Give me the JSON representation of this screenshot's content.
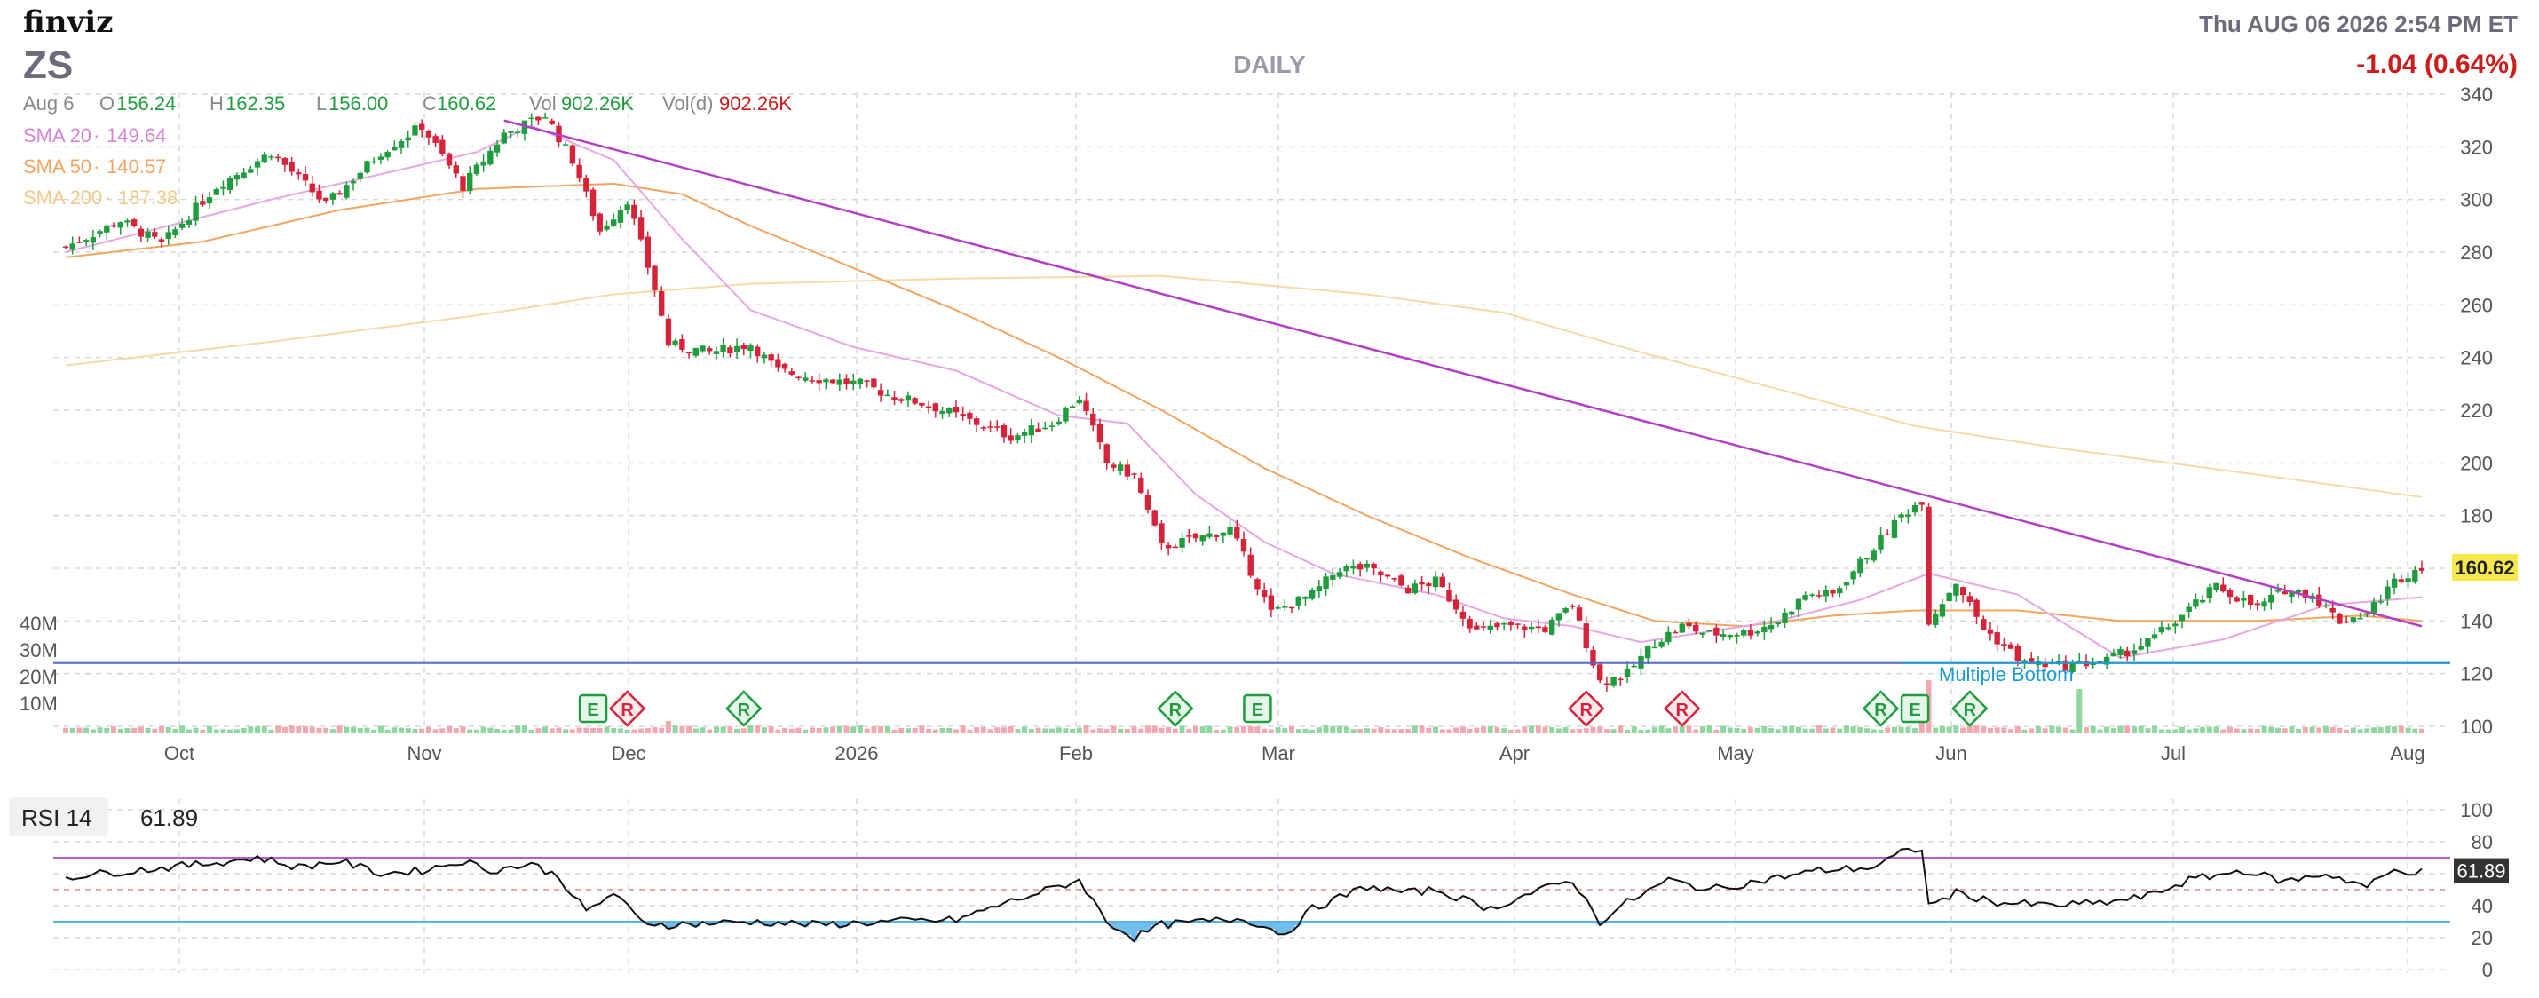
{
  "brand": {
    "name": "finviz"
  },
  "ticker": "ZS",
  "period_label": "DAILY",
  "timestamp": "Thu AUG 06 2026 2:54 PM ET",
  "change": "-1.04 (0.64%)",
  "ohlc": {
    "date": "Aug 6",
    "open_label": "O",
    "open": "156.24",
    "high_label": "H",
    "high": "162.35",
    "low_label": "L",
    "low": "156.00",
    "close_label": "C",
    "close": "160.62",
    "vol_label": "Vol",
    "vol": "902.26K",
    "vold_label": "Vol(d)",
    "vold": "902.26K"
  },
  "sma": [
    {
      "label": "SMA 20",
      "value": "149.64",
      "color": "#d884d4"
    },
    {
      "label": "SMA 50",
      "value": "140.57",
      "color": "#f4a460"
    },
    {
      "label": "SMA 200",
      "value": "187.38",
      "color": "#f5d9a8"
    }
  ],
  "colors": {
    "up": "#1f9d3e",
    "down": "#d6233a",
    "vol_up": "#8fd6a0",
    "vol_down": "#f2a8b0",
    "trendline": "#b23fc4",
    "support": "#1a9bd7",
    "price_tag_bg": "#f7e94b",
    "rsi_line": "#111111",
    "rsi_fill": "#5ab3e6",
    "rsi_upper": "#b75fd0",
    "rsi_lower": "#56b4e9",
    "grid": "#d9d9d9",
    "axis_text": "#555555",
    "change": "#cc1c1c"
  },
  "last_price_tag": "160.62",
  "pattern_label": "Multiple Bottom",
  "rsi": {
    "label": "RSI 14",
    "value": "61.89",
    "ylim": [
      0,
      100
    ],
    "ticks": [
      "0",
      "20",
      "40",
      "60",
      "80",
      "100"
    ],
    "upper": 70,
    "lower": 30
  },
  "chart_data": {
    "type": "candlestick",
    "ylim": [
      100,
      340
    ],
    "y_ticks": [
      "100",
      "120",
      "140",
      "160",
      "180",
      "200",
      "220",
      "240",
      "260",
      "280",
      "300",
      "320",
      "340"
    ],
    "x_ticks": [
      "Oct",
      "Nov",
      "Dec",
      "2026",
      "Feb",
      "Mar",
      "Apr",
      "May",
      "Jun",
      "Jul",
      "Aug"
    ],
    "volume_ticks": [
      "10M",
      "20M",
      "30M",
      "40M"
    ],
    "key_points": [
      {
        "i": 0,
        "c": 282
      },
      {
        "i": 8,
        "c": 292
      },
      {
        "i": 14,
        "c": 283
      },
      {
        "i": 22,
        "c": 305
      },
      {
        "i": 30,
        "c": 318
      },
      {
        "i": 38,
        "c": 298
      },
      {
        "i": 46,
        "c": 318
      },
      {
        "i": 52,
        "c": 328
      },
      {
        "i": 58,
        "c": 305
      },
      {
        "i": 64,
        "c": 325
      },
      {
        "i": 70,
        "c": 332
      },
      {
        "i": 74,
        "c": 315
      },
      {
        "i": 78,
        "c": 288
      },
      {
        "i": 82,
        "c": 300
      },
      {
        "i": 86,
        "c": 266
      },
      {
        "i": 88,
        "c": 245
      },
      {
        "i": 94,
        "c": 242
      },
      {
        "i": 100,
        "c": 245
      },
      {
        "i": 104,
        "c": 235
      },
      {
        "i": 110,
        "c": 232
      },
      {
        "i": 116,
        "c": 230
      },
      {
        "i": 120,
        "c": 226
      },
      {
        "i": 126,
        "c": 222
      },
      {
        "i": 132,
        "c": 216
      },
      {
        "i": 138,
        "c": 210
      },
      {
        "i": 144,
        "c": 215
      },
      {
        "i": 148,
        "c": 225
      },
      {
        "i": 152,
        "c": 200
      },
      {
        "i": 156,
        "c": 195
      },
      {
        "i": 160,
        "c": 168
      },
      {
        "i": 166,
        "c": 172
      },
      {
        "i": 170,
        "c": 175
      },
      {
        "i": 176,
        "c": 143
      },
      {
        "i": 182,
        "c": 150
      },
      {
        "i": 186,
        "c": 160
      },
      {
        "i": 190,
        "c": 160
      },
      {
        "i": 196,
        "c": 152
      },
      {
        "i": 200,
        "c": 155
      },
      {
        "i": 206,
        "c": 136
      },
      {
        "i": 210,
        "c": 138
      },
      {
        "i": 216,
        "c": 137
      },
      {
        "i": 220,
        "c": 146
      },
      {
        "i": 224,
        "c": 117
      },
      {
        "i": 228,
        "c": 120
      },
      {
        "i": 232,
        "c": 132
      },
      {
        "i": 236,
        "c": 138
      },
      {
        "i": 240,
        "c": 135
      },
      {
        "i": 246,
        "c": 136
      },
      {
        "i": 250,
        "c": 140
      },
      {
        "i": 254,
        "c": 150
      },
      {
        "i": 258,
        "c": 150
      },
      {
        "i": 264,
        "c": 168
      },
      {
        "i": 268,
        "c": 180
      },
      {
        "i": 271,
        "c": 186
      },
      {
        "i": 272,
        "c": 140
      },
      {
        "i": 276,
        "c": 155
      },
      {
        "i": 280,
        "c": 137
      },
      {
        "i": 286,
        "c": 124
      },
      {
        "i": 292,
        "c": 123
      },
      {
        "i": 298,
        "c": 125
      },
      {
        "i": 304,
        "c": 132
      },
      {
        "i": 308,
        "c": 140
      },
      {
        "i": 314,
        "c": 153
      },
      {
        "i": 320,
        "c": 145
      },
      {
        "i": 324,
        "c": 152
      },
      {
        "i": 328,
        "c": 150
      },
      {
        "i": 332,
        "c": 140
      },
      {
        "i": 336,
        "c": 143
      },
      {
        "i": 340,
        "c": 155
      },
      {
        "i": 344,
        "c": 161
      }
    ],
    "sma20": [
      [
        0,
        280
      ],
      [
        30,
        300
      ],
      [
        60,
        318
      ],
      [
        68,
        328
      ],
      [
        80,
        315
      ],
      [
        90,
        285
      ],
      [
        100,
        258
      ],
      [
        115,
        244
      ],
      [
        130,
        235
      ],
      [
        145,
        218
      ],
      [
        155,
        215
      ],
      [
        165,
        188
      ],
      [
        175,
        170
      ],
      [
        185,
        158
      ],
      [
        200,
        150
      ],
      [
        210,
        141
      ],
      [
        220,
        138
      ],
      [
        230,
        132
      ],
      [
        240,
        136
      ],
      [
        250,
        140
      ],
      [
        262,
        148
      ],
      [
        272,
        158
      ],
      [
        285,
        150
      ],
      [
        300,
        126
      ],
      [
        315,
        133
      ],
      [
        330,
        146
      ],
      [
        344,
        149
      ]
    ],
    "sma50": [
      [
        0,
        278
      ],
      [
        20,
        284
      ],
      [
        40,
        296
      ],
      [
        60,
        304
      ],
      [
        80,
        306
      ],
      [
        90,
        302
      ],
      [
        100,
        290
      ],
      [
        115,
        274
      ],
      [
        130,
        258
      ],
      [
        145,
        240
      ],
      [
        160,
        220
      ],
      [
        175,
        198
      ],
      [
        190,
        180
      ],
      [
        205,
        164
      ],
      [
        220,
        150
      ],
      [
        232,
        140
      ],
      [
        245,
        138
      ],
      [
        258,
        142
      ],
      [
        270,
        144
      ],
      [
        285,
        144
      ],
      [
        300,
        140
      ],
      [
        320,
        140
      ],
      [
        335,
        142
      ],
      [
        344,
        140
      ]
    ],
    "sma200": [
      [
        0,
        237
      ],
      [
        30,
        246
      ],
      [
        60,
        256
      ],
      [
        80,
        264
      ],
      [
        100,
        268
      ],
      [
        130,
        270
      ],
      [
        160,
        271
      ],
      [
        190,
        264
      ],
      [
        210,
        257
      ],
      [
        230,
        242
      ],
      [
        250,
        228
      ],
      [
        270,
        214
      ],
      [
        290,
        206
      ],
      [
        310,
        199
      ],
      [
        330,
        192
      ],
      [
        344,
        187
      ]
    ],
    "trendline": [
      [
        64,
        330
      ],
      [
        344,
        138
      ]
    ],
    "support_level": 124,
    "events": [
      {
        "i": 77,
        "label": "E",
        "type": "earnings"
      },
      {
        "i": 82,
        "label": "R",
        "type": "down"
      },
      {
        "i": 99,
        "label": "R",
        "type": "up"
      },
      {
        "i": 162,
        "label": "R",
        "type": "up"
      },
      {
        "i": 174,
        "label": "E",
        "type": "earnings"
      },
      {
        "i": 222,
        "label": "R",
        "type": "down"
      },
      {
        "i": 236,
        "label": "R",
        "type": "down"
      },
      {
        "i": 265,
        "label": "R",
        "type": "up"
      },
      {
        "i": 270,
        "label": "E",
        "type": "earnings"
      },
      {
        "i": 278,
        "label": "R",
        "type": "up"
      }
    ],
    "rsi_points": [
      [
        0,
        58
      ],
      [
        10,
        62
      ],
      [
        20,
        66
      ],
      [
        28,
        70
      ],
      [
        34,
        64
      ],
      [
        40,
        68
      ],
      [
        46,
        60
      ],
      [
        52,
        62
      ],
      [
        58,
        68
      ],
      [
        62,
        62
      ],
      [
        68,
        66
      ],
      [
        72,
        58
      ],
      [
        76,
        36
      ],
      [
        80,
        48
      ],
      [
        84,
        30
      ],
      [
        88,
        28
      ],
      [
        100,
        30
      ],
      [
        110,
        28
      ],
      [
        120,
        30
      ],
      [
        130,
        31
      ],
      [
        136,
        40
      ],
      [
        142,
        48
      ],
      [
        148,
        56
      ],
      [
        152,
        30
      ],
      [
        156,
        20
      ],
      [
        160,
        28
      ],
      [
        166,
        30
      ],
      [
        172,
        32
      ],
      [
        178,
        22
      ],
      [
        182,
        38
      ],
      [
        190,
        52
      ],
      [
        196,
        48
      ],
      [
        200,
        50
      ],
      [
        208,
        38
      ],
      [
        214,
        48
      ],
      [
        220,
        56
      ],
      [
        224,
        30
      ],
      [
        228,
        42
      ],
      [
        234,
        56
      ],
      [
        240,
        50
      ],
      [
        248,
        56
      ],
      [
        256,
        62
      ],
      [
        264,
        64
      ],
      [
        268,
        73
      ],
      [
        271,
        76
      ],
      [
        272,
        40
      ],
      [
        276,
        48
      ],
      [
        282,
        42
      ],
      [
        290,
        40
      ],
      [
        298,
        42
      ],
      [
        304,
        46
      ],
      [
        310,
        56
      ],
      [
        318,
        62
      ],
      [
        324,
        55
      ],
      [
        330,
        60
      ],
      [
        336,
        52
      ],
      [
        340,
        62
      ],
      [
        344,
        61
      ]
    ]
  }
}
